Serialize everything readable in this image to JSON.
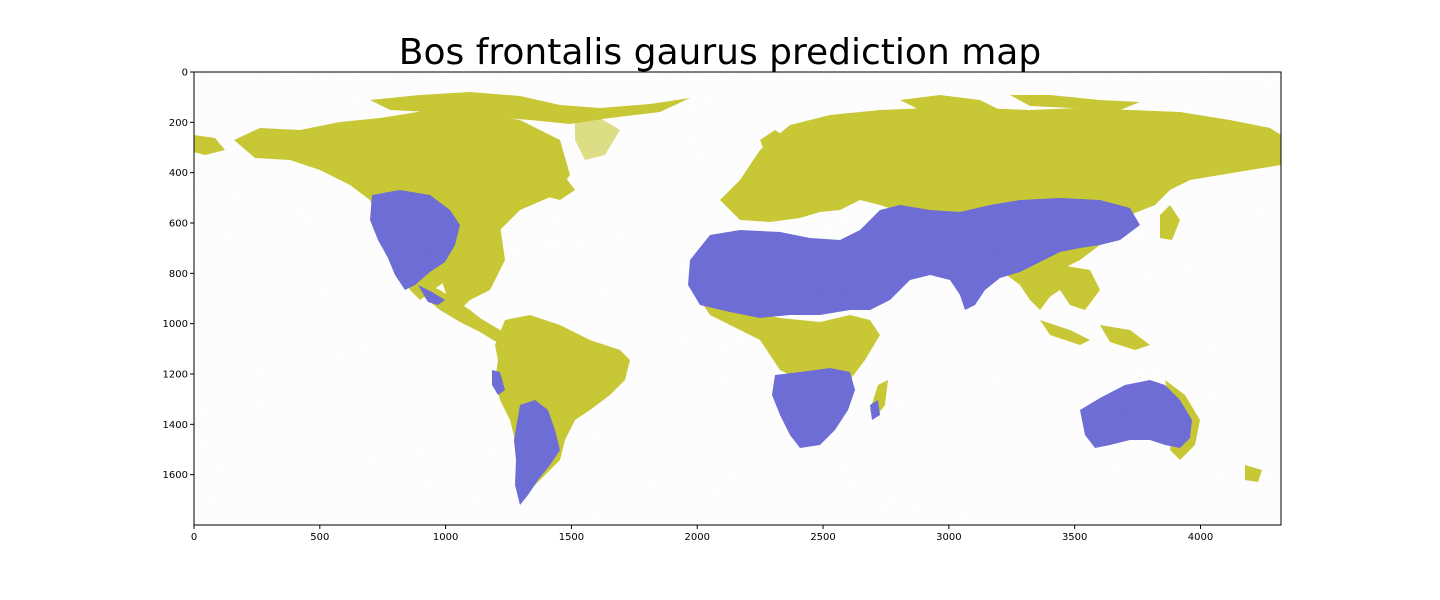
{
  "title": "Bos frontalis gaurus prediction map",
  "chart_data": {
    "type": "heatmap",
    "title": "Bos frontalis gaurus prediction map",
    "xlabel": "",
    "ylabel": "",
    "xlim": [
      0,
      4320
    ],
    "ylim": [
      1800,
      0
    ],
    "x_ticks": [
      0,
      500,
      1000,
      1500,
      2000,
      2500,
      3000,
      3500,
      4000
    ],
    "y_ticks": [
      0,
      200,
      400,
      600,
      800,
      1000,
      1200,
      1400,
      1600
    ],
    "grid": false,
    "colors": {
      "high": "#6b6bd6",
      "low": "#c8c832",
      "background": "#ffffff"
    }
  }
}
